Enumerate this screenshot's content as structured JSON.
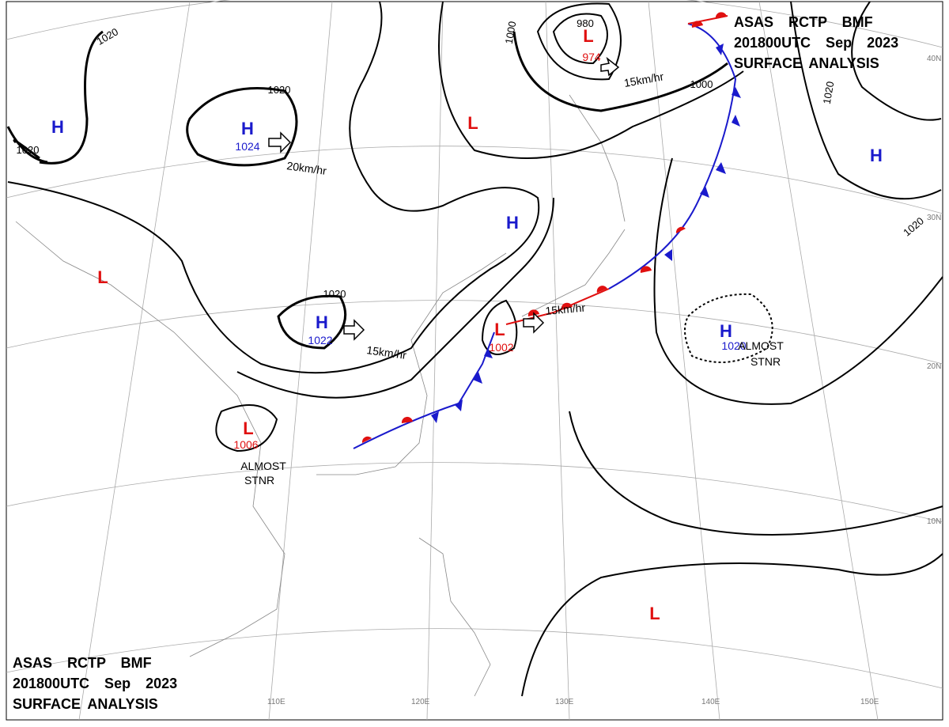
{
  "header": {
    "line1": "ASAS RCTP BMF",
    "line2": "201800UTC Sep 2023",
    "line3": "SURFACE ANALYSIS"
  },
  "pressure_systems": [
    {
      "symbol": "H",
      "value": "1024"
    },
    {
      "symbol": "H",
      "value": "1022"
    },
    {
      "symbol": "H"
    },
    {
      "symbol": "H"
    },
    {
      "symbol": "H"
    },
    {
      "symbol": "H",
      "value": "1020"
    },
    {
      "symbol": "L"
    },
    {
      "symbol": "L"
    },
    {
      "symbol": "L",
      "value": "974"
    },
    {
      "symbol": "L",
      "value": "1002"
    },
    {
      "symbol": "L",
      "value": "1006"
    },
    {
      "symbol": "L"
    }
  ],
  "isobar_labels": [
    "1020",
    "1020",
    "1020",
    "1020",
    "1000",
    "1000",
    "980",
    "1020",
    "1020"
  ],
  "motion_labels": [
    "20km/hr",
    "15km/hr",
    "15km/hr",
    "15km/hr"
  ],
  "notes": [
    [
      "ALMOST",
      "STNR"
    ],
    [
      "ALMOST",
      "STNR"
    ]
  ],
  "latitude_labels": [
    "40N",
    "30N",
    "20N",
    "10N"
  ],
  "longitude_labels": [
    "110E",
    "120E",
    "130E",
    "140E",
    "150E"
  ]
}
